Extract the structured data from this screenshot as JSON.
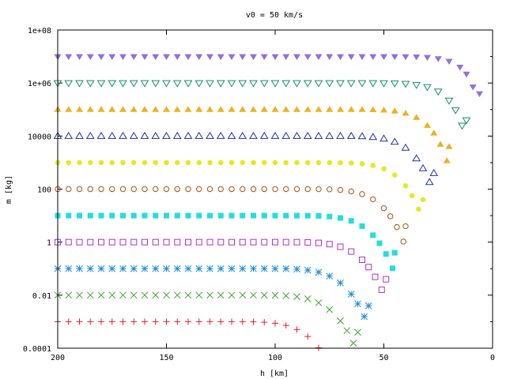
{
  "chart_data": {
    "type": "scatter",
    "title": "v0 = 50 km/s",
    "xlabel": "h [km]",
    "ylabel": "m [kg]",
    "x_reversed": true,
    "xlim": [
      200,
      0
    ],
    "ylim": [
      0.0001,
      100000000
    ],
    "y_scale": "log",
    "x_ticks": [
      200,
      150,
      100,
      50,
      0
    ],
    "x_tick_labels": [
      "200",
      "150",
      "100",
      "50",
      "0"
    ],
    "y_ticks": [
      0.0001,
      0.01,
      1,
      100,
      10000,
      1000000,
      100000000
    ],
    "y_tick_labels": [
      "0.0001",
      "0.01",
      "1",
      "100",
      "10000",
      "1e+06",
      "1e+08"
    ],
    "series": [
      {
        "marker": "plus",
        "color": "#e8202a",
        "m0": 0.001,
        "h_end": 72
      },
      {
        "marker": "cross",
        "color": "#3aa52a",
        "m0": 0.01,
        "h_end": 62
      },
      {
        "marker": "star",
        "color": "#1f8fd8",
        "m0": 0.1,
        "h_end": 57
      },
      {
        "marker": "open-square",
        "color": "#b030c8",
        "m0": 1,
        "h_end": 49
      },
      {
        "marker": "filled-square",
        "color": "#22dede",
        "m0": 10,
        "h_end": 45
      },
      {
        "marker": "open-circle",
        "color": "#b05010",
        "m0": 100,
        "h_end": 40
      },
      {
        "marker": "filled-circle",
        "color": "#e8e820",
        "m0": 1000,
        "h_end": 32
      },
      {
        "marker": "open-triangle-up",
        "color": "#2030a0",
        "m0": 10000,
        "h_end": 27
      },
      {
        "marker": "filled-triangle-up",
        "color": "#f0b020",
        "m0": 100000,
        "h_end": 20
      },
      {
        "marker": "open-triangle-down",
        "color": "#109060",
        "m0": 1000000,
        "h_end": 12
      },
      {
        "marker": "filled-triangle-down",
        "color": "#9070e0",
        "m0": 10000000,
        "h_end": 6
      }
    ]
  }
}
